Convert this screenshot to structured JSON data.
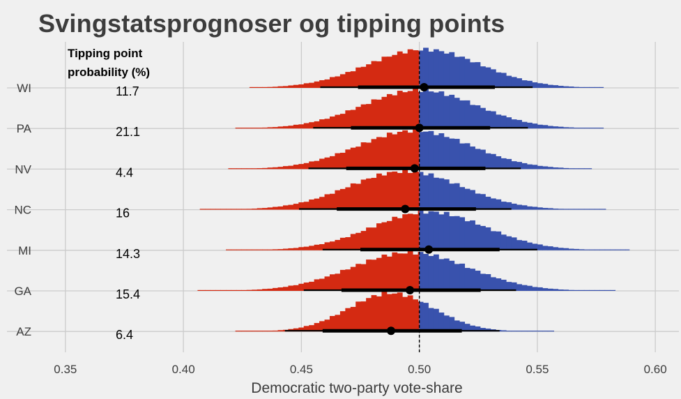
{
  "title": "Svingstatsprognoser og tipping points",
  "colors": {
    "background": "#f0f0f0",
    "grid": "#cbcbcb",
    "republican": "#d42a12",
    "democratic": "#3952ad",
    "interval": "#000000",
    "midline": "#000000",
    "axis_text": "#3c3c3c"
  },
  "chart_data": {
    "type": "histogram-ridge",
    "title": "Svingstatsprognoser og tipping points",
    "xlabel": "Democratic two-party vote-share",
    "ylabel": "",
    "xlim": [
      0.34,
      0.61
    ],
    "x_ticks": [
      0.35,
      0.4,
      0.45,
      0.5,
      0.55,
      0.6
    ],
    "x_tick_labels": [
      "0.35",
      "0.40",
      "0.45",
      "0.50",
      "0.55",
      "0.60"
    ],
    "reference_line": 0.5,
    "grid": true,
    "tipping_header": [
      "Tipping point",
      "probability (%)"
    ],
    "states": [
      {
        "label": "WI",
        "tipping": "11.7",
        "median": 0.502,
        "ci50": [
          0.474,
          0.532
        ],
        "ci90": [
          0.458,
          0.548
        ],
        "range": [
          0.428,
          0.578
        ],
        "sd": 0.024
      },
      {
        "label": "PA",
        "tipping": "21.1",
        "median": 0.5,
        "ci50": [
          0.471,
          0.53
        ],
        "ci90": [
          0.455,
          0.546
        ],
        "range": [
          0.422,
          0.578
        ],
        "sd": 0.024
      },
      {
        "label": "NV",
        "tipping": "4.4",
        "median": 0.498,
        "ci50": [
          0.469,
          0.528
        ],
        "ci90": [
          0.453,
          0.543
        ],
        "range": [
          0.419,
          0.573
        ],
        "sd": 0.024
      },
      {
        "label": "NC",
        "tipping": "16",
        "median": 0.494,
        "ci50": [
          0.465,
          0.524
        ],
        "ci90": [
          0.449,
          0.539
        ],
        "range": [
          0.407,
          0.579
        ],
        "sd": 0.024
      },
      {
        "label": "MI",
        "tipping": "14.3",
        "median": 0.504,
        "ci50": [
          0.475,
          0.534
        ],
        "ci90": [
          0.459,
          0.55
        ],
        "range": [
          0.418,
          0.589
        ],
        "sd": 0.024
      },
      {
        "label": "GA",
        "tipping": "15.4",
        "median": 0.496,
        "ci50": [
          0.467,
          0.526
        ],
        "ci90": [
          0.451,
          0.541
        ],
        "range": [
          0.406,
          0.583
        ],
        "sd": 0.025
      },
      {
        "label": "AZ",
        "tipping": "6.4",
        "median": 0.488,
        "ci50": [
          0.459,
          0.518
        ],
        "ci90": [
          0.443,
          0.534
        ],
        "range": [
          0.422,
          0.557
        ],
        "sd": 0.018
      }
    ]
  }
}
